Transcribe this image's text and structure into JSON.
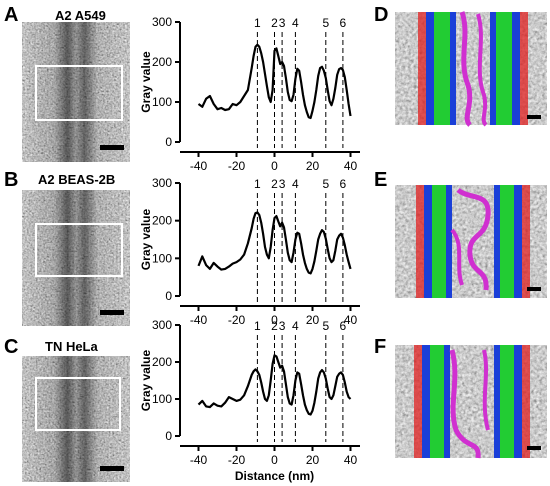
{
  "panels": {
    "a": {
      "letter": "A",
      "title": "A2 A549"
    },
    "b": {
      "letter": "B",
      "title": "A2 BEAS-2B"
    },
    "c": {
      "letter": "C",
      "title": "TN HeLa"
    },
    "d": {
      "letter": "D"
    },
    "e": {
      "letter": "E"
    },
    "f": {
      "letter": "F"
    }
  },
  "chart_data": [
    {
      "type": "line",
      "title": "",
      "xlabel": "",
      "ylabel": "Gray value",
      "xlim": [
        -45,
        45
      ],
      "ylim": [
        0,
        300
      ],
      "x_ticks": [
        -40,
        -20,
        0,
        20,
        40
      ],
      "y_ticks": [
        0,
        100,
        200,
        300
      ],
      "peak_labels": [
        "1",
        "2",
        "3",
        "4",
        "5",
        "6"
      ],
      "peak_x": [
        -9,
        0,
        4,
        11,
        27,
        36
      ],
      "grid": false,
      "series": [
        {
          "x": [
            -40,
            -38,
            -36,
            -34,
            -32,
            -30,
            -28,
            -26,
            -24,
            -22,
            -20,
            -18,
            -16,
            -14,
            -12,
            -11,
            -10,
            -9,
            -8,
            -7,
            -6,
            -5,
            -4,
            -3,
            -2,
            -1,
            0,
            1,
            2,
            3,
            4,
            5,
            6,
            7,
            8,
            9,
            10,
            11,
            12,
            13,
            14,
            15,
            16,
            17,
            18,
            19,
            20,
            21,
            22,
            23,
            24,
            25,
            26,
            27,
            28,
            29,
            30,
            31,
            32,
            33,
            34,
            35,
            36,
            37,
            38,
            39,
            40
          ],
          "y": [
            95,
            88,
            108,
            115,
            95,
            82,
            85,
            80,
            82,
            95,
            92,
            100,
            115,
            130,
            185,
            215,
            238,
            243,
            238,
            222,
            200,
            170,
            140,
            112,
            100,
            130,
            228,
            234,
            215,
            195,
            200,
            190,
            160,
            125,
            105,
            102,
            118,
            158,
            183,
            178,
            150,
            118,
            92,
            75,
            62,
            60,
            78,
            100,
            130,
            165,
            185,
            188,
            178,
            160,
            130,
            102,
            92,
            108,
            135,
            168,
            182,
            185,
            180,
            162,
            130,
            95,
            65
          ]
        }
      ]
    },
    {
      "type": "line",
      "title": "",
      "xlabel": "",
      "ylabel": "Gray value",
      "xlim": [
        -45,
        45
      ],
      "ylim": [
        0,
        300
      ],
      "x_ticks": [
        -40,
        -20,
        0,
        20,
        40
      ],
      "y_ticks": [
        0,
        100,
        200,
        300
      ],
      "peak_labels": [
        "1",
        "2",
        "3",
        "4",
        "5",
        "6"
      ],
      "peak_x": [
        -9,
        0,
        4,
        11,
        27,
        36
      ],
      "grid": false,
      "series": [
        {
          "x": [
            -40,
            -38,
            -36,
            -34,
            -32,
            -30,
            -28,
            -26,
            -24,
            -22,
            -20,
            -18,
            -16,
            -14,
            -12,
            -11,
            -10,
            -9,
            -8,
            -7,
            -6,
            -5,
            -4,
            -3,
            -2,
            -1,
            0,
            1,
            2,
            3,
            4,
            5,
            6,
            7,
            8,
            9,
            10,
            11,
            12,
            13,
            14,
            15,
            16,
            17,
            18,
            19,
            20,
            21,
            22,
            23,
            24,
            25,
            26,
            27,
            28,
            29,
            30,
            31,
            32,
            33,
            34,
            35,
            36,
            37,
            38,
            39,
            40
          ],
          "y": [
            80,
            105,
            82,
            72,
            88,
            78,
            70,
            72,
            78,
            86,
            90,
            97,
            110,
            140,
            180,
            205,
            220,
            222,
            215,
            195,
            165,
            130,
            110,
            100,
            130,
            175,
            207,
            212,
            198,
            185,
            195,
            182,
            150,
            115,
            95,
            90,
            115,
            150,
            168,
            165,
            140,
            110,
            88,
            72,
            62,
            60,
            72,
            92,
            120,
            150,
            165,
            175,
            170,
            152,
            125,
            100,
            90,
            95,
            120,
            150,
            160,
            165,
            155,
            135,
            110,
            90,
            72
          ]
        }
      ]
    },
    {
      "type": "line",
      "title": "",
      "xlabel": "Distance (nm)",
      "ylabel": "Gray value",
      "xlim": [
        -45,
        45
      ],
      "ylim": [
        0,
        300
      ],
      "x_ticks": [
        -40,
        -20,
        0,
        20,
        40
      ],
      "y_ticks": [
        0,
        100,
        200,
        300
      ],
      "peak_labels": [
        "1",
        "2",
        "3",
        "4",
        "5",
        "6"
      ],
      "peak_x": [
        -9,
        0,
        4,
        11,
        27,
        36
      ],
      "grid": false,
      "series": [
        {
          "x": [
            -40,
            -38,
            -36,
            -34,
            -32,
            -30,
            -28,
            -26,
            -24,
            -22,
            -20,
            -18,
            -16,
            -14,
            -12,
            -11,
            -10,
            -9,
            -8,
            -7,
            -6,
            -5,
            -4,
            -3,
            -2,
            -1,
            0,
            1,
            2,
            3,
            4,
            5,
            6,
            7,
            8,
            9,
            10,
            11,
            12,
            13,
            14,
            15,
            16,
            17,
            18,
            19,
            20,
            21,
            22,
            23,
            24,
            25,
            26,
            27,
            28,
            29,
            30,
            31,
            32,
            33,
            34,
            35,
            36,
            37,
            38,
            39,
            40
          ],
          "y": [
            85,
            95,
            80,
            78,
            88,
            82,
            80,
            90,
            105,
            100,
            95,
            98,
            110,
            135,
            165,
            175,
            180,
            175,
            165,
            145,
            120,
            100,
            95,
            110,
            150,
            195,
            218,
            215,
            200,
            185,
            190,
            175,
            140,
            105,
            88,
            85,
            110,
            150,
            172,
            168,
            140,
            110,
            85,
            70,
            60,
            58,
            68,
            90,
            120,
            155,
            172,
            178,
            172,
            155,
            128,
            105,
            100,
            110,
            135,
            160,
            168,
            172,
            165,
            145,
            120,
            105,
            100
          ]
        }
      ]
    }
  ]
}
